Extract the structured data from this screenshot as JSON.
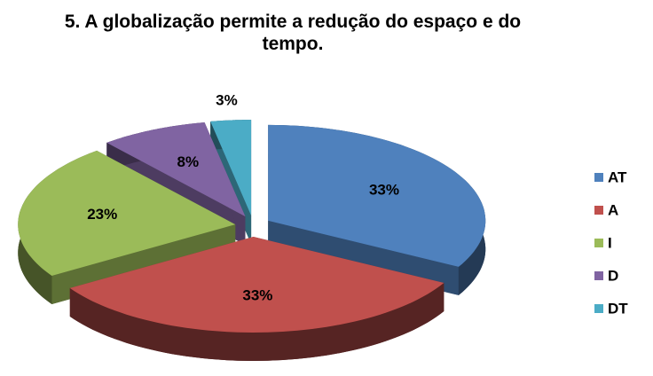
{
  "chart_data": {
    "type": "pie",
    "title": "5. A globalização permite a redução do espaço e do tempo.",
    "categories": [
      "AT",
      "A",
      "I",
      "D",
      "DT"
    ],
    "values": [
      33,
      33,
      23,
      8,
      3
    ],
    "value_labels": [
      "33%",
      "33%",
      "23%",
      "8%",
      "3%"
    ],
    "colors": [
      "#4f81bd",
      "#c0504d",
      "#9bbb59",
      "#8064a2",
      "#4bacc6"
    ],
    "legend": "right"
  }
}
